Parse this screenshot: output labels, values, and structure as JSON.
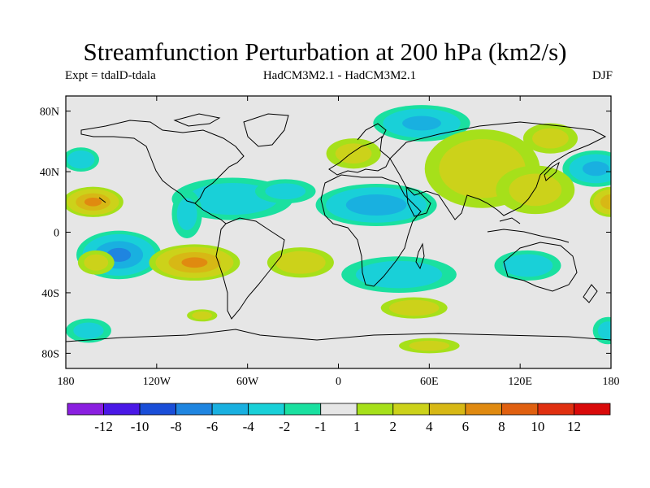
{
  "title": "Streamfunction Perturbation at 200 hPa (km2/s)",
  "subtitle_left": "Expt = tdalD-tdala",
  "subtitle_center": "HadCM3M2.1 - HadCM3M2.1",
  "subtitle_right": "DJF",
  "map": {
    "projection": "cylindrical equidistant",
    "lon_range": [
      -180,
      180
    ],
    "lat_range": [
      -90,
      90
    ],
    "lat_ticks": [
      {
        "value": 80,
        "label": "80N"
      },
      {
        "value": 40,
        "label": "40N"
      },
      {
        "value": 0,
        "label": "0"
      },
      {
        "value": -40,
        "label": "40S"
      },
      {
        "value": -80,
        "label": "80S"
      }
    ],
    "lon_ticks": [
      {
        "value": -180,
        "label": "180"
      },
      {
        "value": -120,
        "label": "120W"
      },
      {
        "value": -60,
        "label": "60W"
      },
      {
        "value": 0,
        "label": "0"
      },
      {
        "value": 60,
        "label": "60E"
      },
      {
        "value": 120,
        "label": "120E"
      },
      {
        "value": 180,
        "label": "180"
      }
    ],
    "background_color": "#e6e6e6",
    "anomalies": [
      {
        "name": "arctic-eurasia-low",
        "lon": 55,
        "lat": 72,
        "rlon": 32,
        "rlat": 12,
        "level": -4
      },
      {
        "name": "north-pacific-low",
        "lon": 170,
        "lat": 42,
        "rlon": 22,
        "rlat": 12,
        "level": -4
      },
      {
        "name": "north-atlantic-low",
        "lon": -170,
        "lat": 48,
        "rlon": 12,
        "rlat": 8,
        "level": -3
      },
      {
        "name": "caribbean-low",
        "lon": -70,
        "lat": 22,
        "rlon": 40,
        "rlat": 14,
        "level": -3
      },
      {
        "name": "west-atlantic-low",
        "lon": -35,
        "lat": 27,
        "rlon": 20,
        "rlat": 8,
        "level": -2
      },
      {
        "name": "mexico-low",
        "lon": -100,
        "lat": 12,
        "rlon": 10,
        "rlat": 16,
        "level": -2
      },
      {
        "name": "north-africa-low",
        "lon": 25,
        "lat": 18,
        "rlon": 40,
        "rlat": 14,
        "level": -5
      },
      {
        "name": "south-pacific-low",
        "lon": -145,
        "lat": -15,
        "rlon": 28,
        "rlat": 16,
        "level": -6
      },
      {
        "name": "south-atlantic-low",
        "lon": 40,
        "lat": -28,
        "rlon": 38,
        "rlat": 12,
        "level": -3
      },
      {
        "name": "australia-low",
        "lon": 125,
        "lat": -22,
        "rlon": 22,
        "rlat": 10,
        "level": -3
      },
      {
        "name": "southern-pacific-low",
        "lon": -165,
        "lat": -65,
        "rlon": 15,
        "rlat": 8,
        "level": -2
      },
      {
        "name": "southern-east-low",
        "lon": 178,
        "lat": -65,
        "rlon": 10,
        "rlat": 9,
        "level": -2
      },
      {
        "name": "north-atlantic-high",
        "lon": 10,
        "lat": 52,
        "rlon": 18,
        "rlat": 10,
        "level": 2
      },
      {
        "name": "asia-high",
        "lon": 95,
        "lat": 42,
        "rlon": 38,
        "rlat": 26,
        "level": 3
      },
      {
        "name": "west-pacific-high",
        "lon": 130,
        "lat": 28,
        "rlon": 26,
        "rlat": 16,
        "level": 2
      },
      {
        "name": "east-asia-high",
        "lon": 140,
        "lat": 62,
        "rlon": 18,
        "rlat": 10,
        "level": 2
      },
      {
        "name": "hawaii-high",
        "lon": -162,
        "lat": 20,
        "rlon": 20,
        "rlat": 10,
        "level": 6
      },
      {
        "name": "pacific-south-high",
        "lon": -160,
        "lat": -20,
        "rlon": 12,
        "rlat": 8,
        "level": 2
      },
      {
        "name": "south-america-high",
        "lon": -95,
        "lat": -20,
        "rlon": 30,
        "rlat": 12,
        "level": 6
      },
      {
        "name": "mid-atlantic-high",
        "lon": -25,
        "lat": -20,
        "rlon": 22,
        "rlat": 10,
        "level": 3
      },
      {
        "name": "southern-ocean-high",
        "lon": 50,
        "lat": -50,
        "rlon": 22,
        "rlat": 7,
        "level": 3
      },
      {
        "name": "south-indian-high",
        "lon": 60,
        "lat": -75,
        "rlon": 20,
        "rlat": 5,
        "level": 2
      },
      {
        "name": "drake-high",
        "lon": -90,
        "lat": -55,
        "rlon": 10,
        "rlat": 4,
        "level": 2
      },
      {
        "name": "far-east-high",
        "lon": 180,
        "lat": 20,
        "rlon": 14,
        "rlat": 10,
        "level": 5
      }
    ]
  },
  "colorbar": {
    "colors": [
      "#8a1fe0",
      "#4a18e6",
      "#1a4ed8",
      "#1f85e0",
      "#19b0e0",
      "#19d0d8",
      "#1ae0a0",
      "#e6e6e6",
      "#a6e01a",
      "#ccd21a",
      "#d7b815",
      "#e08a10",
      "#e06010",
      "#e03010",
      "#d90a0a"
    ],
    "labels": [
      "-12",
      "-10",
      "-8",
      "-6",
      "-4",
      "-2",
      "-1",
      "1",
      "2",
      "4",
      "6",
      "8",
      "10",
      "12"
    ]
  }
}
